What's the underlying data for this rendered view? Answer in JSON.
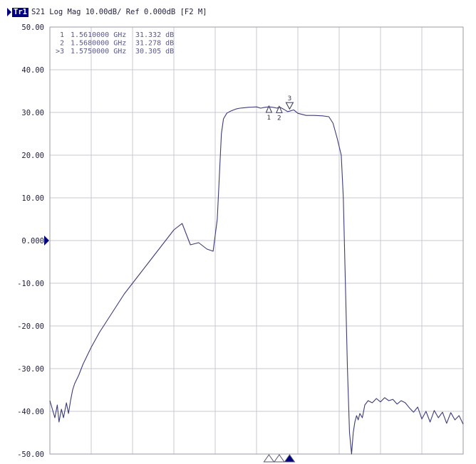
{
  "header": {
    "trace_label": "Tr1",
    "params": "S21 Log Mag 10.00dB/ Ref 0.000dB [F2 M]"
  },
  "colors": {
    "trace": "#3b3b7a",
    "grid": "#c8c8d0",
    "accent": "#000080",
    "ref_marker": "#000080"
  },
  "marker_table": [
    {
      "id": "1",
      "freq": "1.5610000 GHz",
      "value": "31.332 dB",
      "active": false
    },
    {
      "id": "2",
      "freq": "1.5680000 GHz",
      "value": "31.278 dB",
      "active": false
    },
    {
      "id": "3",
      "freq": "1.5750000 GHz",
      "value": "30.305 dB",
      "active": true
    }
  ],
  "chart_data": {
    "type": "line",
    "title": "S21 Log Mag 10.00dB/ Ref 0.000dB [F2 M]",
    "xlabel": "",
    "ylabel": "",
    "ylim": [
      -50,
      50
    ],
    "xlim": [
      0,
      10
    ],
    "x_divisions": 10,
    "y_ticks": [
      "50.00",
      "40.00",
      "30.00",
      "20.00",
      "10.00",
      "0.000",
      "-10.00",
      "-20.00",
      "-30.00",
      "-40.00",
      "-50.00"
    ],
    "reference_level": 0,
    "grid": true,
    "markers": [
      {
        "id": "1",
        "x": 5.3,
        "y": 31.332
      },
      {
        "id": "2",
        "x": 5.55,
        "y": 31.278
      },
      {
        "id": "3",
        "x": 5.8,
        "y": 30.305
      }
    ],
    "series": [
      {
        "x": [
          0,
          0.06,
          0.12,
          0.18,
          0.22,
          0.28,
          0.33,
          0.4,
          0.45,
          0.5,
          0.55,
          0.6,
          0.7,
          0.8,
          0.9,
          1.0,
          1.2,
          1.4,
          1.6,
          1.8,
          2.0,
          2.2,
          2.4,
          2.6,
          2.8,
          3.0,
          3.2,
          3.4,
          3.6,
          3.8,
          3.95,
          4.05,
          4.1,
          4.15,
          4.2,
          4.28,
          4.35,
          4.42,
          4.5,
          4.6,
          4.7,
          4.8,
          4.9,
          5.0,
          5.1,
          5.2,
          5.3,
          5.4,
          5.5,
          5.55,
          5.65,
          5.75,
          5.8,
          5.9,
          6.0,
          6.2,
          6.4,
          6.6,
          6.75,
          6.85,
          6.95,
          7.05,
          7.1,
          7.15,
          7.2,
          7.25,
          7.3,
          7.34,
          7.38,
          7.42,
          7.46,
          7.5,
          7.56,
          7.62,
          7.7,
          7.8,
          7.9,
          8.0,
          8.1,
          8.2,
          8.3,
          8.4,
          8.5,
          8.6,
          8.7,
          8.8,
          8.9,
          9.0,
          9.1,
          9.2,
          9.3,
          9.4,
          9.5,
          9.6,
          9.7,
          9.8,
          9.9,
          10.0
        ],
        "values": [
          -37.5,
          -39.5,
          -41.5,
          -38.5,
          -42.5,
          -39.5,
          -41.5,
          -38.0,
          -40.5,
          -37.5,
          -35.0,
          -33.5,
          -31.5,
          -29.0,
          -27.0,
          -25.0,
          -21.5,
          -18.5,
          -15.5,
          -12.5,
          -10.0,
          -7.5,
          -5.0,
          -2.5,
          0.0,
          2.5,
          4.0,
          -1.0,
          -0.5,
          -2.0,
          -2.5,
          5.0,
          15.0,
          25.0,
          28.5,
          29.8,
          30.2,
          30.5,
          30.8,
          31.0,
          31.1,
          31.2,
          31.25,
          31.3,
          31.0,
          31.2,
          31.3,
          31.2,
          31.0,
          31.3,
          30.8,
          30.2,
          30.3,
          30.6,
          29.8,
          29.3,
          29.3,
          29.2,
          29.0,
          27.5,
          24.0,
          20.0,
          10.0,
          -10.0,
          -30.0,
          -45.0,
          -50.0,
          -45.0,
          -42.5,
          -41.0,
          -42.0,
          -40.5,
          -41.5,
          -38.5,
          -37.5,
          -38.0,
          -37.0,
          -37.8,
          -36.8,
          -37.5,
          -37.2,
          -38.3,
          -37.5,
          -38.0,
          -39.2,
          -40.2,
          -39.0,
          -41.8,
          -40.0,
          -42.5,
          -39.8,
          -41.5,
          -40.2,
          -42.8,
          -40.3,
          -42.0,
          -41.0,
          -43.0
        ]
      }
    ]
  }
}
